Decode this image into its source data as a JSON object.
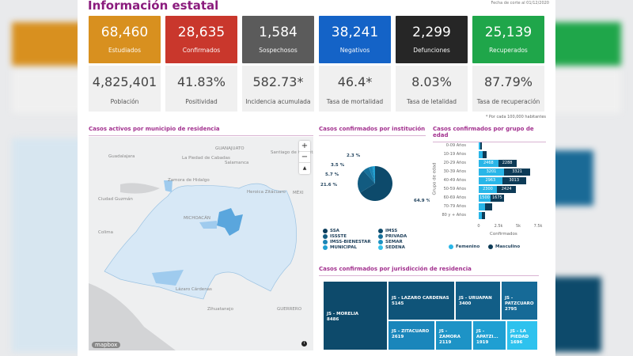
{
  "header": {
    "title": "Información estatal",
    "date": "Fecha de corte al 01/12/2020"
  },
  "cards": [
    {
      "value": "68,460",
      "label": "Estudiados",
      "color": "#d8901f"
    },
    {
      "value": "28,635",
      "label": "Confirmados",
      "color": "#c9372c"
    },
    {
      "value": "1,584",
      "label": "Sospechosos",
      "color": "#5b5b5b"
    },
    {
      "value": "38,241",
      "label": "Negativos",
      "color": "#1463c7"
    },
    {
      "value": "2,299",
      "label": "Defunciones",
      "color": "#262626"
    },
    {
      "value": "25,139",
      "label": "Recuperados",
      "color": "#1fa64a"
    }
  ],
  "stats": [
    {
      "value": "4,825,401",
      "label": "Población"
    },
    {
      "value": "41.83%",
      "label": "Positividad"
    },
    {
      "value": "582.73*",
      "label": "Incidencia acumulada"
    },
    {
      "value": "46.4*",
      "label": "Tasa de mortalidad"
    },
    {
      "value": "8.03%",
      "label": "Tasa de letalidad"
    },
    {
      "value": "87.79%",
      "label": "Tasa de recuperación"
    }
  ],
  "note": "* Por cada 100,000 habitantes",
  "map": {
    "title": "Casos activos por municipio de residencia",
    "labels": [
      "GUANAJUATO",
      "Guadalajara",
      "Santiago de Querétaro",
      "Salamanca",
      "La Piedad de Cabadas",
      "Zamora de Hidalgo",
      "Ciudad Guzmán",
      "Colima",
      "Heroica Zitácuaro",
      "MICHOACÁN",
      "MÉXI",
      "Lázaro Cárdenas",
      "Zihuatanejo",
      "GUERRERO"
    ],
    "attribution": "mapbox",
    "zoom_in": "+",
    "zoom_out": "−",
    "compass": "▲",
    "info": "i"
  },
  "institution": {
    "title": "Casos confirmados por institución",
    "slices": [
      {
        "label": "64.9 %",
        "value": 64.9,
        "color": "#0d4a6b"
      },
      {
        "label": "21.6 %",
        "value": 21.6,
        "color": "#125b80"
      },
      {
        "label": "5.7 %",
        "value": 5.7,
        "color": "#16709a"
      },
      {
        "label": "3.5 %",
        "value": 3.5,
        "color": "#1a85b5"
      },
      {
        "label": "2.3 %",
        "value": 2.3,
        "color": "#1fa0d2"
      }
    ],
    "legend": [
      {
        "name": "SSA",
        "color": "#0b3d5c"
      },
      {
        "name": "IMSS",
        "color": "#0d4a6b"
      },
      {
        "name": "ISSSTE",
        "color": "#125b80"
      },
      {
        "name": "PRIVADA",
        "color": "#16709a"
      },
      {
        "name": "IMSS-BIENESTAR",
        "color": "#1a85b5"
      },
      {
        "name": "SEMAR",
        "color": "#1c93c3"
      },
      {
        "name": "MUNICIPAL",
        "color": "#1fa0d2"
      },
      {
        "name": "SEDENA",
        "color": "#35c1ea"
      }
    ]
  },
  "chart_data": {
    "type": "bar",
    "title": "Casos confirmados por grupo de edad",
    "xlabel": "Confirmados",
    "ylabel": "Grupo de edad",
    "xlim": [
      0,
      7500
    ],
    "xticks": [
      "0",
      "2.5k",
      "5k",
      "7.5k"
    ],
    "categories": [
      "0-09 Años",
      "10-19 Años",
      "20-29 Años",
      "30-39 Años",
      "40-49 Años",
      "50-59 Años",
      "60-69 Años",
      "70-79 Años",
      "80 y + Años"
    ],
    "series": [
      {
        "name": "Femenino",
        "color": "#29b6e8",
        "values": [
          200,
          450,
          2468,
          3201,
          2963,
          2300,
          1500,
          800,
          400
        ]
      },
      {
        "name": "Masculino",
        "color": "#0d3b57",
        "values": [
          220,
          513,
          2288,
          3321,
          3013,
          2424,
          1675,
          947,
          420
        ]
      }
    ]
  },
  "treemap": {
    "title": "Casos confirmados por jurisdicción de residencia",
    "items": [
      {
        "name": "JS - MORELIA",
        "value": "8486",
        "color": "#0d4a6b"
      },
      {
        "name": "JS - LAZARO CARDENAS",
        "value": "5145",
        "color": "#0f5479"
      },
      {
        "name": "JS - URUAPAN",
        "value": "3400",
        "color": "#125e87"
      },
      {
        "name": "JS - PATZCUARO",
        "value": "2795",
        "color": "#166a97"
      },
      {
        "name": "JS - ZITACUARO",
        "value": "2619",
        "color": "#1a86bb"
      },
      {
        "name": "JS - ZAMORA",
        "value": "2119",
        "color": "#1d93c6"
      },
      {
        "name": "JS - APATZI...",
        "value": "1919",
        "color": "#1f9fd2"
      },
      {
        "name": "JS - LA PIEDAD",
        "value": "1696",
        "color": "#2ec2ee"
      }
    ]
  }
}
